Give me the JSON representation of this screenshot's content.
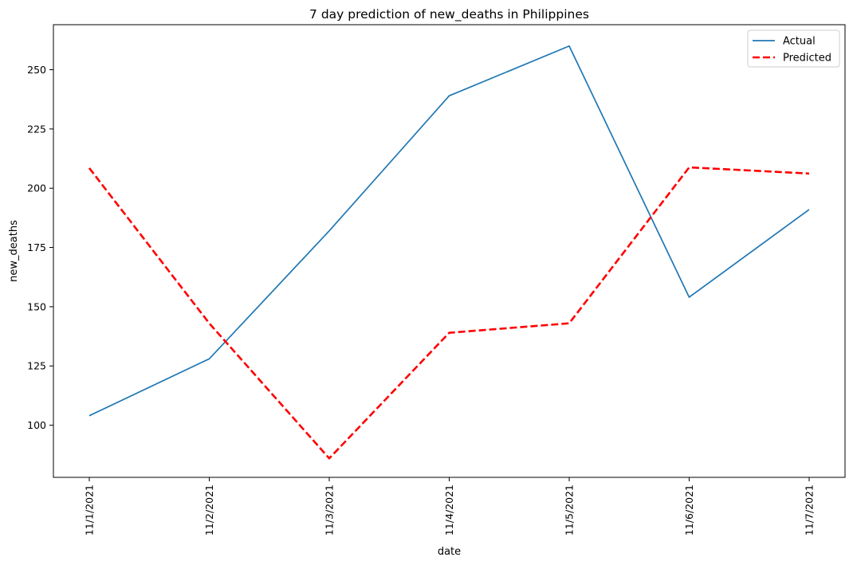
{
  "chart_data": {
    "type": "line",
    "title": "7 day prediction of new_deaths in Philippines",
    "xlabel": "date",
    "ylabel": "new_deaths",
    "categories": [
      "11/1/2021",
      "11/2/2021",
      "11/3/2021",
      "11/4/2021",
      "11/5/2021",
      "11/6/2021",
      "11/7/2021"
    ],
    "series": [
      {
        "name": "Actual",
        "values": [
          104,
          128,
          182,
          239,
          260,
          154,
          191
        ],
        "color": "#1f77b4",
        "style": "solid"
      },
      {
        "name": "Predicted",
        "values": [
          208.5,
          143,
          86,
          139,
          143,
          208.8,
          206.2
        ],
        "color": "#ff0000",
        "style": "dashed"
      }
    ],
    "ylim": [
      78,
      269
    ],
    "yticks": [
      100,
      125,
      150,
      175,
      200,
      225,
      250
    ],
    "grid": false,
    "legend_position": "top-right"
  }
}
